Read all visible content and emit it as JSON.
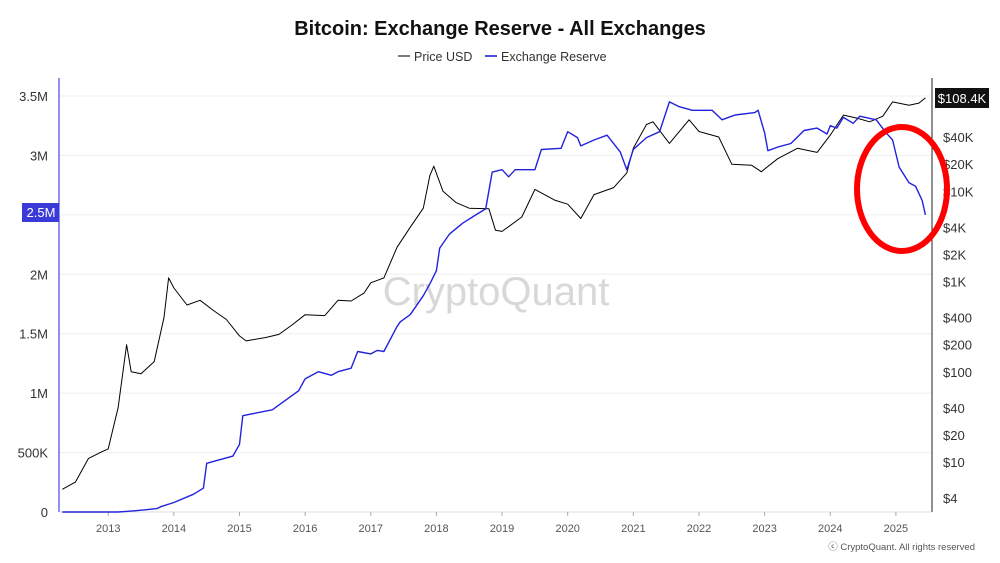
{
  "chart_data": {
    "type": "line",
    "title": "Bitcoin: Exchange Reserve - All Exchanges",
    "watermark": "CryptoQuant",
    "footer": "ⓒ CryptoQuant. All rights reserved",
    "x_ticks": [
      "2013",
      "2014",
      "2015",
      "2016",
      "2017",
      "2018",
      "2019",
      "2020",
      "2021",
      "2022",
      "2023",
      "2024",
      "2025"
    ],
    "x_range": [
      2012.25,
      2025.55
    ],
    "left_axis": {
      "ylim": [
        0,
        3600000
      ],
      "ticks": [
        {
          "value": 0,
          "label": "0"
        },
        {
          "value": 500000,
          "label": "500K"
        },
        {
          "value": 1000000,
          "label": "1M"
        },
        {
          "value": 1500000,
          "label": "1.5M"
        },
        {
          "value": 2000000,
          "label": "2M"
        },
        {
          "value": 2500000,
          "label": "2.5M"
        },
        {
          "value": 3000000,
          "label": "3M"
        },
        {
          "value": 3500000,
          "label": "3.5M"
        }
      ],
      "current_value_label": "2.5M"
    },
    "right_axis": {
      "scale": "log",
      "ticks": [
        {
          "value": 4,
          "label": "$4"
        },
        {
          "value": 10,
          "label": "$10"
        },
        {
          "value": 20,
          "label": "$20"
        },
        {
          "value": 40,
          "label": "$40"
        },
        {
          "value": 100,
          "label": "$100"
        },
        {
          "value": 200,
          "label": "$200"
        },
        {
          "value": 400,
          "label": "$400"
        },
        {
          "value": 1000,
          "label": "$1K"
        },
        {
          "value": 2000,
          "label": "$2K"
        },
        {
          "value": 4000,
          "label": "$4K"
        },
        {
          "value": 10000,
          "label": "$10K"
        },
        {
          "value": 20000,
          "label": "$20K"
        },
        {
          "value": 40000,
          "label": "$40K"
        }
      ],
      "current_value_label": "$108.4K"
    },
    "series": [
      {
        "name": "Price USD",
        "axis": "right",
        "color": "#000000",
        "x": [
          2012.3,
          2012.5,
          2012.7,
          2012.9,
          2013.0,
          2013.15,
          2013.28,
          2013.35,
          2013.5,
          2013.7,
          2013.85,
          2013.92,
          2014.0,
          2014.2,
          2014.4,
          2014.6,
          2014.8,
          2015.0,
          2015.1,
          2015.4,
          2015.6,
          2015.8,
          2016.0,
          2016.3,
          2016.5,
          2016.7,
          2016.9,
          2017.0,
          2017.2,
          2017.4,
          2017.6,
          2017.8,
          2017.9,
          2017.96,
          2018.1,
          2018.3,
          2018.5,
          2018.8,
          2018.9,
          2019.0,
          2019.3,
          2019.5,
          2019.8,
          2020.0,
          2020.2,
          2020.4,
          2020.7,
          2020.9,
          2021.0,
          2021.2,
          2021.3,
          2021.55,
          2021.85,
          2022.0,
          2022.3,
          2022.5,
          2022.8,
          2022.95,
          2023.2,
          2023.5,
          2023.8,
          2024.0,
          2024.2,
          2024.4,
          2024.6,
          2024.8,
          2024.95,
          2025.2,
          2025.35,
          2025.45
        ],
        "values": [
          5,
          6,
          11,
          13,
          14,
          40,
          200,
          100,
          95,
          130,
          400,
          1100,
          850,
          550,
          620,
          480,
          380,
          250,
          220,
          240,
          260,
          330,
          430,
          420,
          620,
          610,
          750,
          970,
          1100,
          2400,
          4000,
          6500,
          15000,
          19000,
          10000,
          7500,
          6500,
          6400,
          3700,
          3600,
          5200,
          10500,
          8000,
          7200,
          5000,
          9200,
          11000,
          16000,
          30000,
          55000,
          59000,
          34000,
          62000,
          46000,
          40000,
          20000,
          19500,
          16500,
          23000,
          30000,
          27000,
          42000,
          70000,
          65000,
          59000,
          68000,
          98000,
          90000,
          95000,
          108400
        ]
      },
      {
        "name": "Exchange Reserve",
        "axis": "left",
        "color": "#2222dd",
        "x": [
          2012.3,
          2012.8,
          2013.15,
          2013.4,
          2013.6,
          2013.75,
          2013.8,
          2014.0,
          2014.3,
          2014.45,
          2014.5,
          2014.9,
          2015.0,
          2015.05,
          2015.5,
          2015.9,
          2016.0,
          2016.2,
          2016.4,
          2016.5,
          2016.7,
          2016.8,
          2017.0,
          2017.1,
          2017.2,
          2017.4,
          2017.45,
          2017.6,
          2017.8,
          2017.9,
          2018.0,
          2018.05,
          2018.2,
          2018.4,
          2018.6,
          2018.75,
          2018.85,
          2019.0,
          2019.1,
          2019.2,
          2019.5,
          2019.6,
          2019.9,
          2020.0,
          2020.15,
          2020.2,
          2020.4,
          2020.6,
          2020.8,
          2020.9,
          2021.0,
          2021.2,
          2021.4,
          2021.55,
          2021.7,
          2021.9,
          2022.0,
          2022.2,
          2022.35,
          2022.5,
          2022.55,
          2022.85,
          2022.9,
          2023.0,
          2023.05,
          2023.2,
          2023.4,
          2023.6,
          2023.8,
          2023.95,
          2024.0,
          2024.1,
          2024.2,
          2024.35,
          2024.45,
          2024.7,
          2024.85,
          2024.95,
          2025.05,
          2025.2,
          2025.3,
          2025.4,
          2025.45
        ],
        "values": [
          0,
          0,
          0,
          10000,
          20000,
          30000,
          45000,
          80000,
          150000,
          200000,
          410000,
          470000,
          570000,
          810000,
          860000,
          1020000,
          1120000,
          1180000,
          1150000,
          1180000,
          1210000,
          1350000,
          1330000,
          1360000,
          1350000,
          1560000,
          1600000,
          1660000,
          1820000,
          1920000,
          2030000,
          2220000,
          2340000,
          2430000,
          2500000,
          2550000,
          2860000,
          2880000,
          2820000,
          2880000,
          2880000,
          3050000,
          3060000,
          3200000,
          3150000,
          3080000,
          3130000,
          3170000,
          3030000,
          2880000,
          3050000,
          3150000,
          3200000,
          3450000,
          3410000,
          3380000,
          3380000,
          3380000,
          3300000,
          3330000,
          3340000,
          3360000,
          3380000,
          3190000,
          3040000,
          3070000,
          3100000,
          3210000,
          3230000,
          3180000,
          3250000,
          3230000,
          3320000,
          3270000,
          3330000,
          3300000,
          3190000,
          3130000,
          2900000,
          2770000,
          2740000,
          2620000,
          2500000
        ]
      }
    ]
  }
}
